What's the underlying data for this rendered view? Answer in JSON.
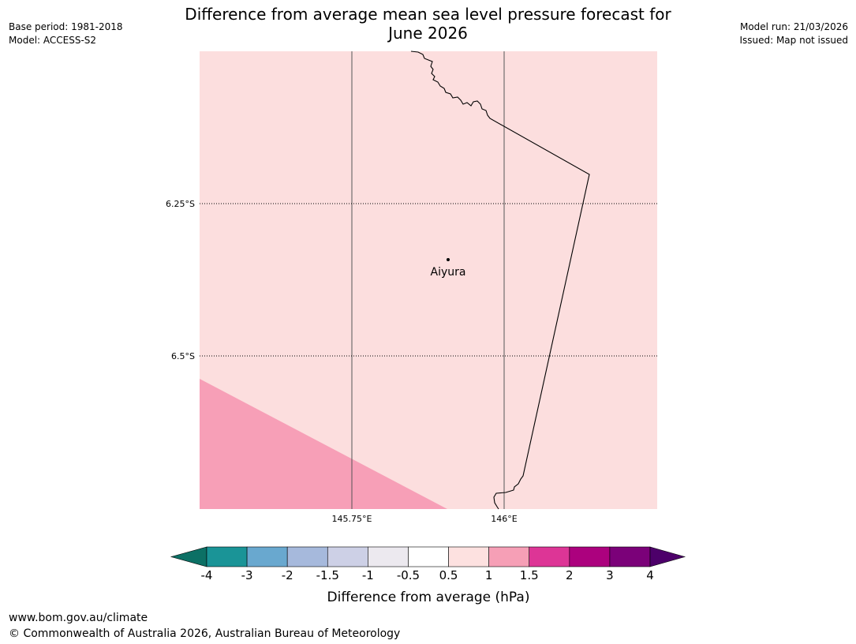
{
  "header": {
    "title_line1": "Difference from average mean sea level pressure forecast for",
    "title_line2": "June 2026",
    "base_period": "Base period: 1981-2018",
    "model": "Model: ACCESS-S2",
    "model_run": "Model run: 21/03/2026",
    "issued": "Issued: Map not issued"
  },
  "map": {
    "place": {
      "name": "Aiyura",
      "lon": 145.9,
      "lat": -6.35
    },
    "longitude_labels": [
      "145.75°E",
      "146°E"
    ],
    "latitude_labels": [
      "6.25°S",
      "6.5°S"
    ],
    "colors": {
      "background_fill": "#fcdede",
      "anomaly_fill": "#f79fb7",
      "border_line": "#000000",
      "grid_line": "#555555"
    }
  },
  "legend": {
    "label": "Difference from average (hPa)",
    "ticks": [
      "-4",
      "-3",
      "-2",
      "-1.5",
      "-1",
      "-0.5",
      "0.5",
      "1",
      "1.5",
      "2",
      "3",
      "4"
    ],
    "colors": [
      "#0c7065",
      "#1a9497",
      "#69a8cf",
      "#a6b9dc",
      "#cdd0e6",
      "#ece9ef",
      "#ffffff",
      "#fde1e0",
      "#f69fb6",
      "#dd3596",
      "#ac017e",
      "#7b0179",
      "#4d006a"
    ]
  },
  "footer": {
    "url": "www.bom.gov.au/climate",
    "copyright": "© Commonwealth of Australia 2026, Australian Bureau of Meteorology"
  }
}
